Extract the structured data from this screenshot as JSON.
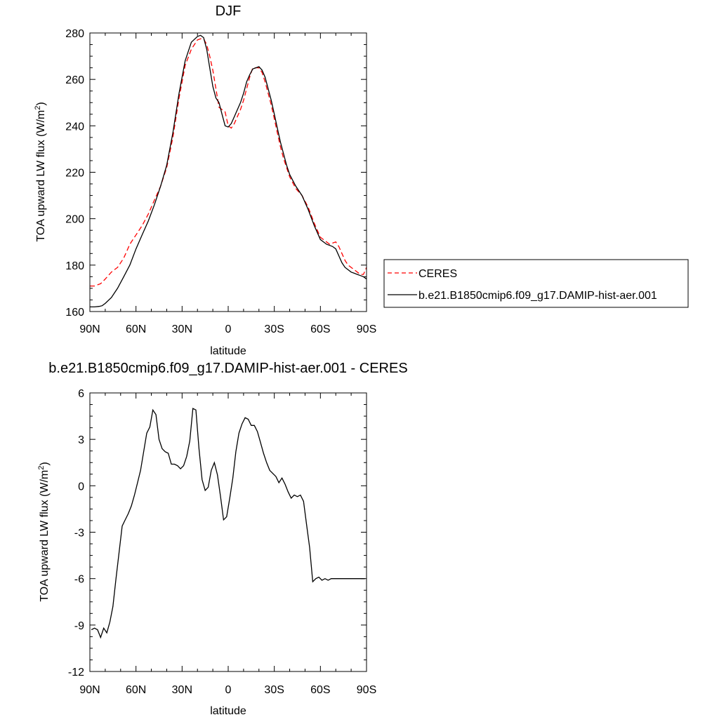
{
  "chart_data": [
    {
      "type": "line",
      "title": "DJF",
      "xlabel": "latitude",
      "ylabel_main": "TOA upward LW flux (W/m",
      "ylabel_sup": "2",
      "ylabel_close": ")",
      "xlim": [
        90,
        -90
      ],
      "ylim": [
        160,
        280
      ],
      "x_ticks": [
        90,
        60,
        30,
        0,
        -30,
        -60,
        -90
      ],
      "x_tick_labels": [
        "90N",
        "60N",
        "30N",
        "0",
        "30S",
        "60S",
        "90S"
      ],
      "y_ticks": [
        160,
        180,
        200,
        220,
        240,
        260,
        280
      ],
      "y_tick_labels": [
        "160",
        "180",
        "200",
        "220",
        "240",
        "260",
        "280"
      ],
      "legend": {
        "placement": "right",
        "entries": [
          {
            "label": "CERES",
            "color": "#ff0000",
            "dash": "dashed"
          },
          {
            "label": "b.e21.B1850cmip6.f09_g17.DAMIP-hist-aer.001",
            "color": "#000000",
            "dash": "solid"
          }
        ]
      },
      "series": [
        {
          "name": "CERES",
          "color": "#ff0000",
          "dash": "dashed",
          "x": [
            90,
            87,
            83,
            80,
            76,
            72,
            68,
            64,
            60,
            56,
            52,
            48,
            44,
            40,
            36,
            32,
            28,
            24,
            20,
            18,
            16,
            14,
            12,
            10,
            8,
            6,
            4,
            2,
            0,
            -2,
            -4,
            -6,
            -8,
            -10,
            -12,
            -14,
            -16,
            -18,
            -20,
            -22,
            -24,
            -26,
            -28,
            -30,
            -32,
            -34,
            -36,
            -38,
            -40,
            -44,
            -48,
            -52,
            -56,
            -60,
            -64,
            -66,
            -68,
            -70,
            -72,
            -74,
            -76,
            -78,
            -80,
            -82,
            -84,
            -86,
            -88,
            -90
          ],
          "y": [
            171,
            171,
            172,
            174,
            177,
            179,
            183,
            189,
            193,
            197,
            202,
            208,
            214,
            222,
            235,
            252,
            266,
            273,
            277,
            277.5,
            277.5,
            275,
            270,
            264,
            256,
            248,
            247,
            246,
            240,
            239,
            241,
            244,
            247,
            251,
            256,
            261,
            265,
            265,
            265,
            263,
            259,
            254,
            249,
            243,
            237,
            231,
            226,
            222,
            218,
            213,
            210,
            205,
            198,
            192,
            190,
            189,
            189.5,
            190,
            188,
            185,
            182,
            180,
            179,
            178,
            177,
            176,
            176,
            179
          ]
        },
        {
          "name": "b.e21.B1850cmip6.f09_g17.DAMIP-hist-aer.001",
          "color": "#000000",
          "dash": "solid",
          "x": [
            90,
            87,
            84,
            82,
            80,
            76,
            72,
            68,
            64,
            60,
            56,
            52,
            48,
            44,
            40,
            36,
            32,
            28,
            24,
            20,
            18,
            16,
            14,
            12,
            10,
            8,
            6,
            4,
            2,
            0,
            -2,
            -4,
            -6,
            -8,
            -10,
            -12,
            -14,
            -16,
            -18,
            -20,
            -22,
            -24,
            -26,
            -28,
            -30,
            -32,
            -34,
            -36,
            -38,
            -40,
            -44,
            -48,
            -52,
            -56,
            -60,
            -64,
            -66,
            -68,
            -70,
            -72,
            -74,
            -76,
            -78,
            -80,
            -82,
            -84,
            -86,
            -88,
            -90
          ],
          "y": [
            162,
            162,
            162.2,
            162.5,
            163.5,
            166,
            170,
            175,
            180,
            187,
            193,
            199,
            206,
            214,
            223,
            237,
            254,
            268,
            276,
            278.5,
            279,
            278,
            273,
            265,
            257,
            252,
            250,
            245,
            240,
            239.5,
            241,
            244,
            247,
            250,
            254,
            259,
            262,
            264.5,
            265,
            265.5,
            264,
            261,
            256,
            251,
            245,
            239,
            233,
            228,
            223,
            219,
            214,
            210,
            204,
            197,
            191,
            189,
            188.5,
            188,
            187,
            184,
            181,
            179,
            178,
            177,
            176.5,
            176,
            175.5,
            175,
            174
          ]
        }
      ]
    },
    {
      "type": "line",
      "title": "b.e21.B1850cmip6.f09_g17.DAMIP-hist-aer.001 - CERES",
      "xlabel": "latitude",
      "ylabel_main": "TOA upward LW flux (W/m",
      "ylabel_sup": "2",
      "ylabel_close": ")",
      "xlim": [
        90,
        -90
      ],
      "ylim": [
        -12,
        6
      ],
      "x_ticks": [
        90,
        60,
        30,
        0,
        -30,
        -60,
        -90
      ],
      "x_tick_labels": [
        "90N",
        "60N",
        "30N",
        "0",
        "30S",
        "60S",
        "90S"
      ],
      "y_ticks": [
        6,
        3,
        0,
        -3,
        -6,
        -9,
        -12
      ],
      "y_tick_labels": [
        "6",
        "3",
        "0",
        "-3",
        "-6",
        "-9",
        "-12"
      ],
      "series": [
        {
          "color": "#000000",
          "dash": "solid",
          "x": [
            89,
            87,
            85,
            83,
            81,
            79,
            77,
            75,
            73,
            71,
            69,
            67,
            65,
            63,
            61,
            59,
            57,
            55,
            53,
            51,
            49,
            47,
            45,
            43,
            41,
            39,
            37,
            35,
            33,
            31,
            29,
            27,
            25,
            23,
            21,
            19,
            17,
            15,
            13,
            11,
            9,
            7,
            5,
            3,
            1,
            -1,
            -3,
            -5,
            -7,
            -9,
            -11,
            -13,
            -15,
            -17,
            -19,
            -21,
            -23,
            -25,
            -27,
            -29,
            -31,
            -33,
            -35,
            -37,
            -39,
            -41,
            -43,
            -45,
            -47,
            -49,
            -51,
            -53,
            -55,
            -57,
            -59,
            -61,
            -63,
            -65,
            -67,
            -69,
            -71,
            -73,
            -75,
            -77,
            -79,
            -81,
            -83,
            -85,
            -87,
            -89
          ],
          "y": [
            -9.3,
            -9.2,
            -9.3,
            -9.8,
            -9.2,
            -9.5,
            -8.8,
            -7.8,
            -6.0,
            -4.3,
            -2.6,
            -2.2,
            -1.8,
            -1.3,
            -0.6,
            0.2,
            1.0,
            2.2,
            3.4,
            3.8,
            4.9,
            4.6,
            3.0,
            2.4,
            2.2,
            2.1,
            1.4,
            1.4,
            1.3,
            1.1,
            1.3,
            1.9,
            2.9,
            5.0,
            4.9,
            2.4,
            0.4,
            -0.3,
            -0.1,
            1.0,
            1.5,
            0.7,
            -0.7,
            -2.2,
            -2.0,
            -0.8,
            0.5,
            2.2,
            3.4,
            4.0,
            4.4,
            4.3,
            3.9,
            3.9,
            3.5,
            2.8,
            2.1,
            1.5,
            1.0,
            0.8,
            0.6,
            0.2,
            0.5,
            0.1,
            -0.4,
            -0.8,
            -0.6,
            -0.7,
            -0.6,
            -1.0,
            -2.5,
            -4.0,
            -6.2,
            -6.0,
            -5.9,
            -6.1,
            -6.0,
            -6.1,
            -6.0,
            -6.0,
            -6.0,
            -6.0,
            -6.0,
            -6.0,
            -6.0,
            -6.0,
            -6.0,
            -6.0,
            -6.0,
            -6.0
          ]
        }
      ]
    }
  ]
}
